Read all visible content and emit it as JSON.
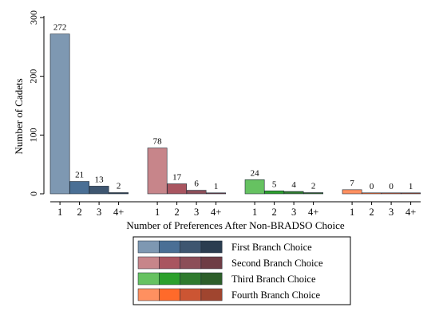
{
  "chart_data": {
    "type": "bar",
    "ylabel": "Number of Cadets",
    "xlabel": "Number of Preferences After Non-BRADSO Choice",
    "ylim": [
      0,
      300
    ],
    "yticks": [
      0,
      100,
      200,
      300
    ],
    "categories": [
      "1",
      "2",
      "3",
      "4+"
    ],
    "series": [
      {
        "name": "First Branch Choice",
        "values": [
          272,
          21,
          13,
          2
        ],
        "colors": [
          "#7e98b2",
          "#4a6f95",
          "#3e5670",
          "#2b3d50"
        ]
      },
      {
        "name": "Second Branch Choice",
        "values": [
          78,
          17,
          6,
          1
        ],
        "colors": [
          "#c7858a",
          "#a95560",
          "#8c4e58",
          "#6e3d45"
        ]
      },
      {
        "name": "Third Branch Choice",
        "values": [
          24,
          5,
          4,
          2
        ],
        "colors": [
          "#66c261",
          "#2ca02c",
          "#2f7a2e",
          "#2d5e2a"
        ]
      },
      {
        "name": "Fourth Branch Choice",
        "values": [
          7,
          0,
          0,
          1
        ],
        "colors": [
          "#ff9060",
          "#ff6a2a",
          "#cc5533",
          "#a0452f"
        ]
      }
    ],
    "legend_position": "bottom",
    "grid": false
  }
}
